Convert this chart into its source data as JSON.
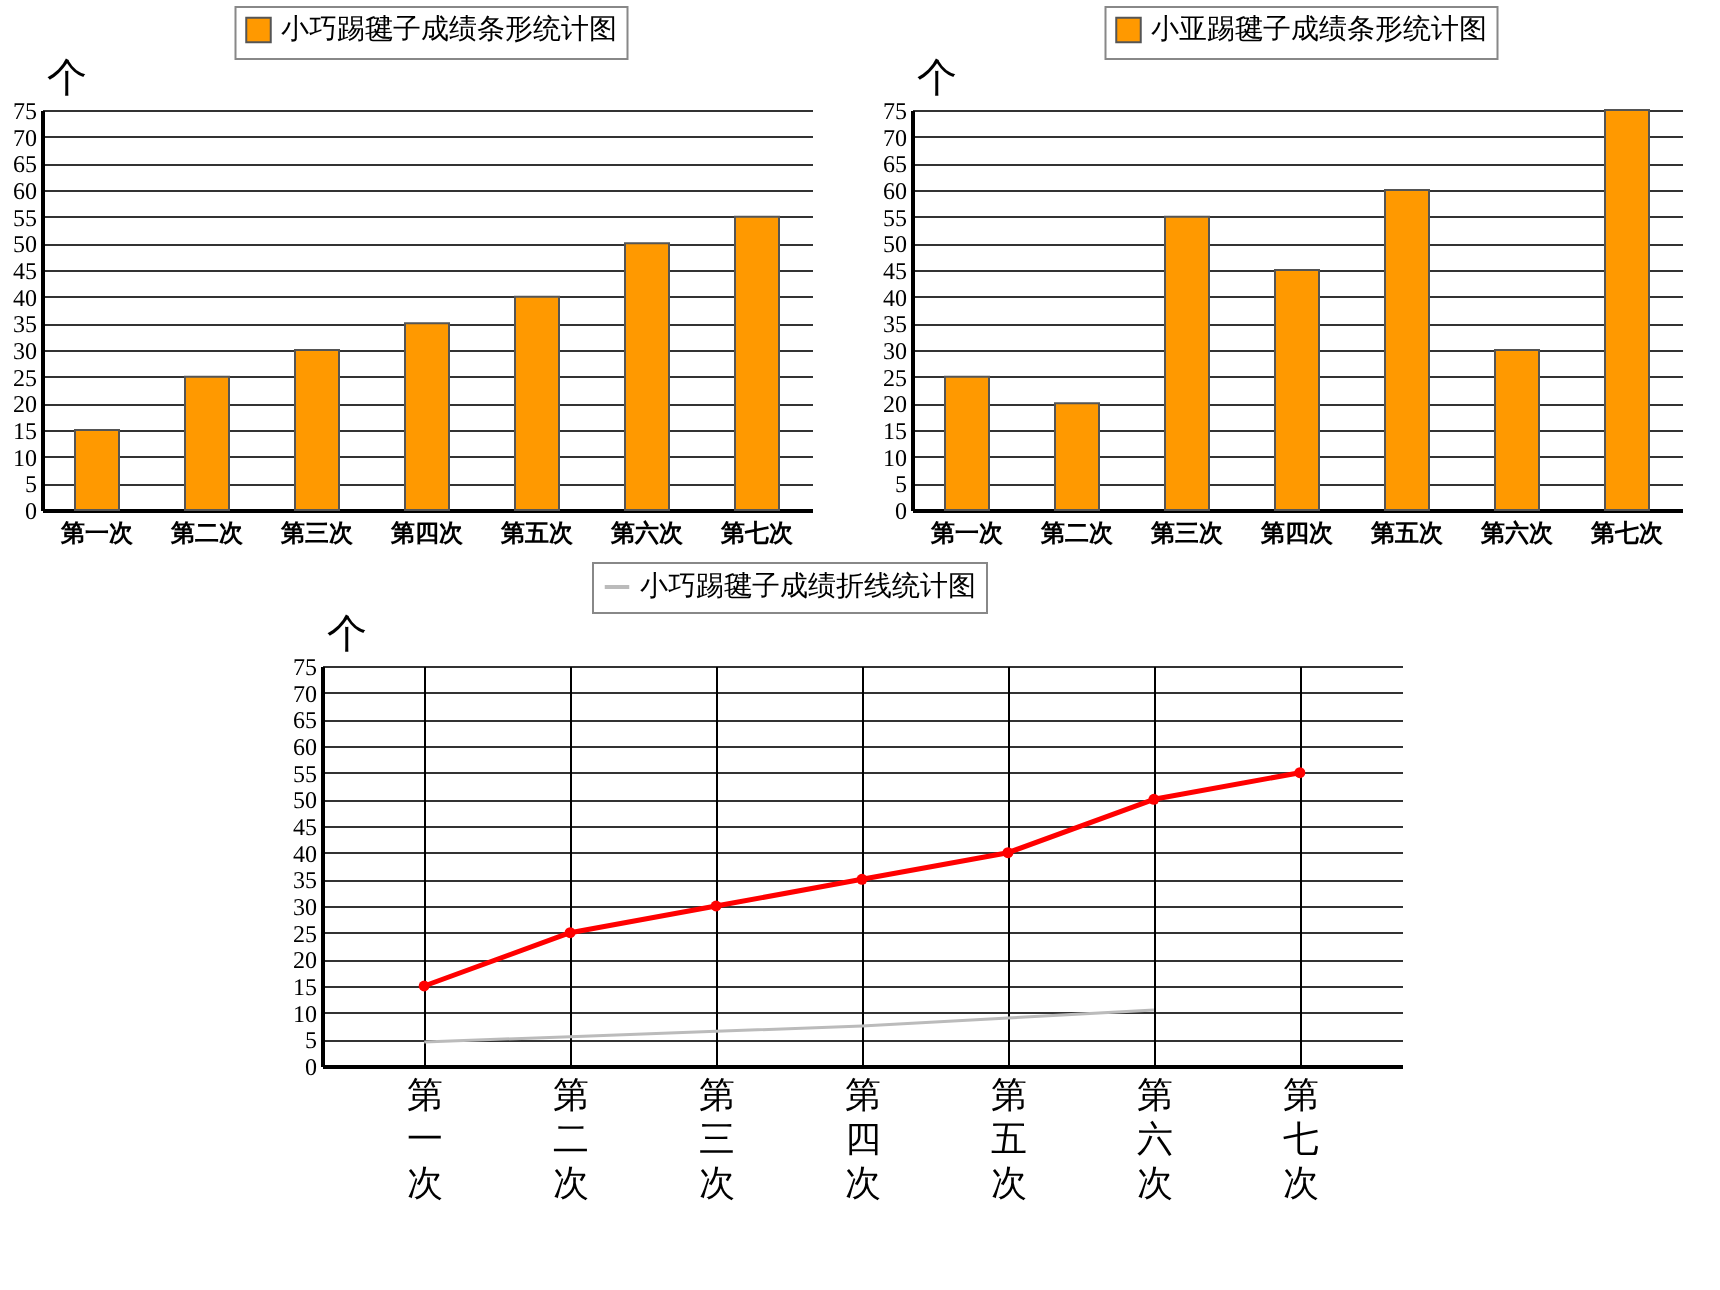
{
  "chart_data": [
    {
      "type": "bar",
      "ylabel": "个",
      "categories": [
        "第一次",
        "第二次",
        "第三次",
        "第四次",
        "第五次",
        "第六次",
        "第七次"
      ],
      "series": [
        {
          "name": "小巧踢毽子成绩条形统计图",
          "color": "#ff9900",
          "values": [
            15,
            25,
            30,
            35,
            40,
            50,
            55
          ]
        }
      ],
      "ylim": [
        0,
        75
      ],
      "yticks": [
        0,
        5,
        10,
        15,
        20,
        25,
        30,
        35,
        40,
        45,
        50,
        55,
        60,
        65,
        70,
        75
      ],
      "grid": "y",
      "legend": "top"
    },
    {
      "type": "bar",
      "ylabel": "个",
      "categories": [
        "第一次",
        "第二次",
        "第三次",
        "第四次",
        "第五次",
        "第六次",
        "第七次"
      ],
      "series": [
        {
          "name": "小亚踢毽子成绩条形统计图",
          "color": "#ff9900",
          "values": [
            25,
            20,
            55,
            45,
            60,
            30,
            75
          ]
        }
      ],
      "ylim": [
        0,
        75
      ],
      "yticks": [
        0,
        5,
        10,
        15,
        20,
        25,
        30,
        35,
        40,
        45,
        50,
        55,
        60,
        65,
        70,
        75
      ],
      "grid": "y",
      "legend": "top"
    },
    {
      "type": "line",
      "ylabel": "个",
      "categories": [
        "第一次",
        "第二次",
        "第三次",
        "第四次",
        "第五次",
        "第六次",
        "第七次"
      ],
      "series": [
        {
          "color": "#ff0000",
          "marker": "circle",
          "values": [
            15,
            25,
            30,
            35,
            40,
            50,
            55
          ]
        },
        {
          "name": "小巧踢毽子成绩折线统计图",
          "color": "#bbbbbb",
          "marker": "none",
          "values": [
            4.5,
            5.5,
            6.5,
            7.5,
            9,
            10.5,
            null
          ]
        }
      ],
      "ylim": [
        0,
        75
      ],
      "yticks": [
        0,
        5,
        10,
        15,
        20,
        25,
        30,
        35,
        40,
        45,
        50,
        55,
        60,
        65,
        70,
        75
      ],
      "grid": true,
      "legend": "top"
    }
  ]
}
